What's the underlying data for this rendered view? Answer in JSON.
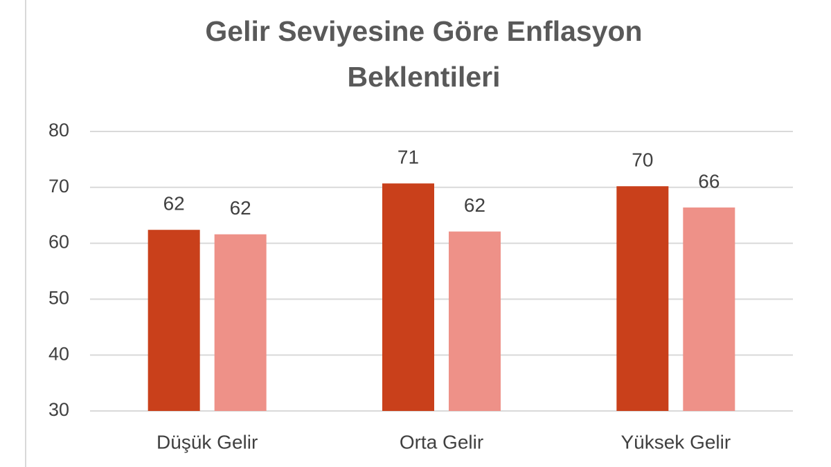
{
  "chart_data": {
    "type": "bar",
    "title": "Gelir Seviyesine Göre Enflasyon Beklentileri",
    "categories": [
      "Düşük Gelir",
      "Orta Gelir",
      "Yüksek Gelir"
    ],
    "series": [
      {
        "color": "#c9401b",
        "values": [
          62.4,
          70.7,
          70.2
        ],
        "value_labels": [
          "62",
          "71",
          "70"
        ]
      },
      {
        "color": "#ee9188",
        "values": [
          61.6,
          62.1,
          66.4
        ],
        "value_labels": [
          "62",
          "62",
          "66"
        ]
      }
    ],
    "ylim": [
      30,
      80
    ],
    "yticks": [
      30,
      40,
      50,
      60,
      70,
      80
    ],
    "grid": true
  }
}
